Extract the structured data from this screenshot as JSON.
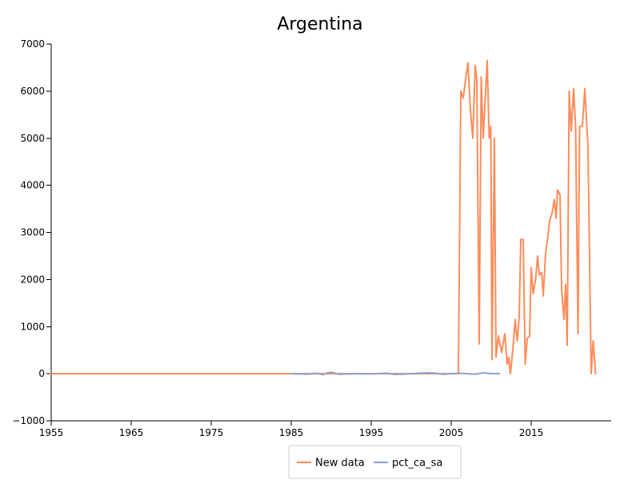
{
  "chart_data": {
    "type": "line",
    "title": "Argentina",
    "xlabel": "",
    "ylabel": "",
    "xlim": [
      1955,
      2025
    ],
    "ylim": [
      -1000,
      7000
    ],
    "x_ticks": [
      "1955",
      "1965",
      "1975",
      "1985",
      "1995",
      "2005",
      "2015"
    ],
    "y_ticks": [
      "−1000",
      "0",
      "1000",
      "2000",
      "3000",
      "4000",
      "5000",
      "6000",
      "7000"
    ],
    "grid": false,
    "legend_position": "bottom",
    "series": [
      {
        "name": "New data",
        "color": "#ff8c5a",
        "points": [
          [
            1955,
            0
          ],
          [
            1985,
            0
          ],
          [
            2005.9,
            0
          ],
          [
            2006.2,
            6000
          ],
          [
            2006.5,
            5850
          ],
          [
            2006.8,
            6250
          ],
          [
            2007.1,
            6600
          ],
          [
            2007.4,
            5600
          ],
          [
            2007.7,
            5000
          ],
          [
            2008.0,
            6550
          ],
          [
            2008.2,
            6250
          ],
          [
            2008.5,
            630
          ],
          [
            2008.75,
            6300
          ],
          [
            2009.0,
            5000
          ],
          [
            2009.5,
            6650
          ],
          [
            2009.75,
            5000
          ],
          [
            2009.95,
            5250
          ],
          [
            2010.1,
            300
          ],
          [
            2010.4,
            5000
          ],
          [
            2010.6,
            350
          ],
          [
            2010.9,
            800
          ],
          [
            2011.3,
            450
          ],
          [
            2011.7,
            850
          ],
          [
            2012.0,
            200
          ],
          [
            2012.2,
            350
          ],
          [
            2012.4,
            0
          ],
          [
            2012.7,
            500
          ],
          [
            2013.0,
            1150
          ],
          [
            2013.25,
            700
          ],
          [
            2013.5,
            1200
          ],
          [
            2013.7,
            2850
          ],
          [
            2014.0,
            2850
          ],
          [
            2014.25,
            200
          ],
          [
            2014.5,
            750
          ],
          [
            2014.8,
            800
          ],
          [
            2015.0,
            2250
          ],
          [
            2015.25,
            1700
          ],
          [
            2015.55,
            2000
          ],
          [
            2015.8,
            2500
          ],
          [
            2016.0,
            2100
          ],
          [
            2016.3,
            2150
          ],
          [
            2016.5,
            1650
          ],
          [
            2016.8,
            2550
          ],
          [
            2017.0,
            2800
          ],
          [
            2017.3,
            3250
          ],
          [
            2017.6,
            3400
          ],
          [
            2017.9,
            3700
          ],
          [
            2018.1,
            3300
          ],
          [
            2018.3,
            3900
          ],
          [
            2018.6,
            3800
          ],
          [
            2018.8,
            1800
          ],
          [
            2019.1,
            1150
          ],
          [
            2019.3,
            1900
          ],
          [
            2019.5,
            600
          ],
          [
            2019.75,
            6000
          ],
          [
            2020.0,
            5150
          ],
          [
            2020.3,
            6050
          ],
          [
            2020.55,
            5250
          ],
          [
            2020.85,
            850
          ],
          [
            2021.05,
            5250
          ],
          [
            2021.4,
            5250
          ],
          [
            2021.7,
            6050
          ],
          [
            2022.1,
            4800
          ],
          [
            2022.5,
            0
          ],
          [
            2022.75,
            700
          ],
          [
            2023.05,
            0
          ]
        ]
      },
      {
        "name": "pct_ca_sa",
        "color": "#8c9fd2",
        "points": [
          [
            1985,
            0
          ],
          [
            1987,
            -10
          ],
          [
            1988,
            10
          ],
          [
            1989,
            -20
          ],
          [
            1989.5,
            15
          ],
          [
            1990,
            30
          ],
          [
            1991,
            -10
          ],
          [
            1993,
            0
          ],
          [
            1995,
            -5
          ],
          [
            1997,
            10
          ],
          [
            1998,
            -15
          ],
          [
            2000,
            0
          ],
          [
            2002,
            20
          ],
          [
            2003,
            10
          ],
          [
            2004,
            -10
          ],
          [
            2006,
            10
          ],
          [
            2008,
            -10
          ],
          [
            2009,
            20
          ],
          [
            2010,
            0
          ],
          [
            2011,
            0
          ]
        ]
      }
    ]
  }
}
